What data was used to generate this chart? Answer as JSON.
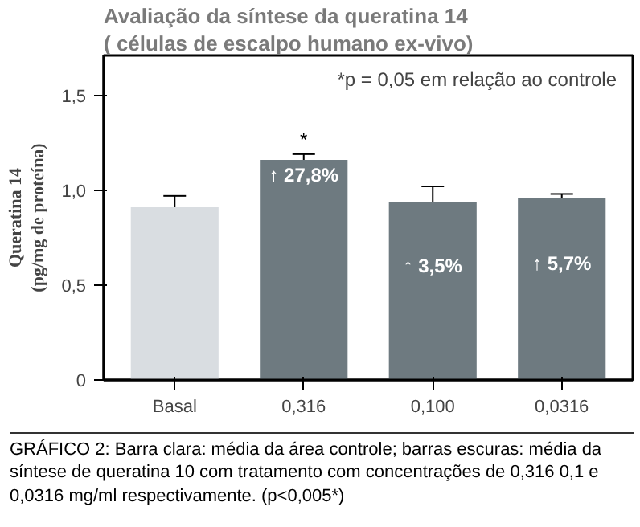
{
  "chart_data": {
    "type": "bar",
    "title": "Avaliação da síntese da queratina 14",
    "subtitle": "( células de escalpo humano ex-vivo)",
    "ylabel": "Queratina 14\n(pg/mg de proteína)",
    "categories": [
      "Basal",
      "0,316",
      "0,100",
      "0,0316"
    ],
    "values": [
      0.91,
      1.16,
      0.94,
      0.96
    ],
    "errors": [
      0.06,
      0.03,
      0.08,
      0.02
    ],
    "colors": [
      "#d9dde1",
      "#6e7a80",
      "#6e7a80",
      "#6e7a80"
    ],
    "ylim": [
      0,
      1.71
    ],
    "yticks": [
      {
        "value": 0,
        "label": "0"
      },
      {
        "value": 0.5,
        "label": "0,5"
      },
      {
        "value": 1.0,
        "label": "1,0"
      },
      {
        "value": 1.5,
        "label": "1,5"
      }
    ],
    "grid": false,
    "annotations": [
      {
        "text": "*",
        "x": "0,316",
        "y": 1.19
      },
      "↑ 27,8%",
      "↑ 3,5%",
      "↑ 5,7%",
      "*p = 0,05 em relação ao controle",
      "GRÁFICO 2: Barra clara: média da área controle; barras escuras: média da síntese de queratina 10 com tratamento com concentrações de 0,316 0,1 e 0,0316 mg/ml respectivamente. (p<0,005*)"
    ]
  }
}
